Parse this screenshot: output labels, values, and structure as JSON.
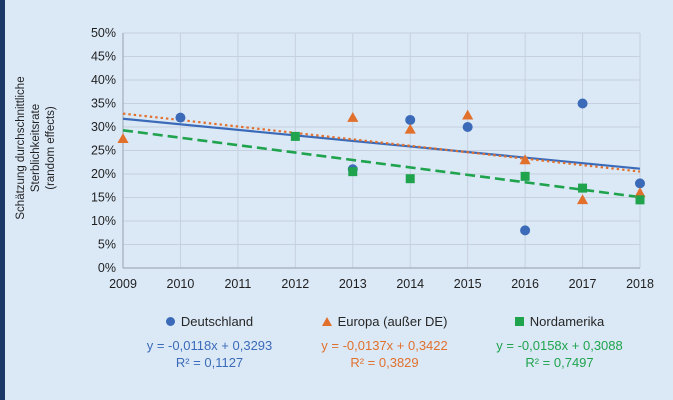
{
  "colors": {
    "background": "#dbe9f7",
    "accent_bar": "#1c3868",
    "gridline": "#c6d0de",
    "axis": "#a3adbb",
    "tick_text": "#1f1f1f"
  },
  "chart_data": {
    "type": "scatter",
    "title": "",
    "xlabel": "",
    "ylabel": "Schätzung durchschnittliche Sterblichkeitsrate (random effects)",
    "ylabel_lines": [
      "Schätzung durchschnittliche",
      "Sterblichkeitsrate",
      "(random effects)"
    ],
    "xlim": [
      2009,
      2018
    ],
    "ylim": [
      0,
      50
    ],
    "grid": true,
    "legend_position": "bottom",
    "x_ticks": [
      2009,
      2010,
      2011,
      2012,
      2013,
      2014,
      2015,
      2016,
      2017,
      2018
    ],
    "y_ticks": [
      "0%",
      "5%",
      "10%",
      "15%",
      "20%",
      "25%",
      "30%",
      "35%",
      "40%",
      "45%",
      "50%"
    ],
    "y_tick_step": 5,
    "trend_x_domain": [
      1,
      10
    ],
    "series": [
      {
        "name": "Deutschland",
        "color": "#3b6bb8",
        "marker": "circle",
        "line_style": "solid",
        "points": [
          {
            "x": 2010,
            "y": 32
          },
          {
            "x": 2013,
            "y": 21
          },
          {
            "x": 2014,
            "y": 31.5
          },
          {
            "x": 2015,
            "y": 30
          },
          {
            "x": 2016,
            "y": 8
          },
          {
            "x": 2017,
            "y": 35
          },
          {
            "x": 2018,
            "y": 18
          }
        ],
        "trend": {
          "slope": -0.0118,
          "intercept": 0.3293,
          "equation": "y = -0,0118x + 0,3293",
          "r2": "R² = 0,1127"
        }
      },
      {
        "name": "Europa (außer DE)",
        "color": "#e2702d",
        "marker": "triangle",
        "line_style": "dotted",
        "points": [
          {
            "x": 2009,
            "y": 27.5
          },
          {
            "x": 2013,
            "y": 32
          },
          {
            "x": 2014,
            "y": 29.5
          },
          {
            "x": 2015,
            "y": 32.5
          },
          {
            "x": 2016,
            "y": 23
          },
          {
            "x": 2017,
            "y": 14.5
          },
          {
            "x": 2018,
            "y": 16
          }
        ],
        "trend": {
          "slope": -0.0137,
          "intercept": 0.3422,
          "equation": "y = -0,0137x + 0,3422",
          "r2": "R² = 0,3829"
        }
      },
      {
        "name": "Nordamerika",
        "color": "#1fa34d",
        "marker": "square",
        "line_style": "dashed",
        "points": [
          {
            "x": 2012,
            "y": 28
          },
          {
            "x": 2013,
            "y": 20.5
          },
          {
            "x": 2014,
            "y": 19
          },
          {
            "x": 2016,
            "y": 19.5
          },
          {
            "x": 2017,
            "y": 17
          },
          {
            "x": 2018,
            "y": 14.5
          }
        ],
        "trend": {
          "slope": -0.0158,
          "intercept": 0.3088,
          "equation": "y = -0,0158x + 0,3088",
          "r2": "R² = 0,7497"
        }
      }
    ]
  }
}
